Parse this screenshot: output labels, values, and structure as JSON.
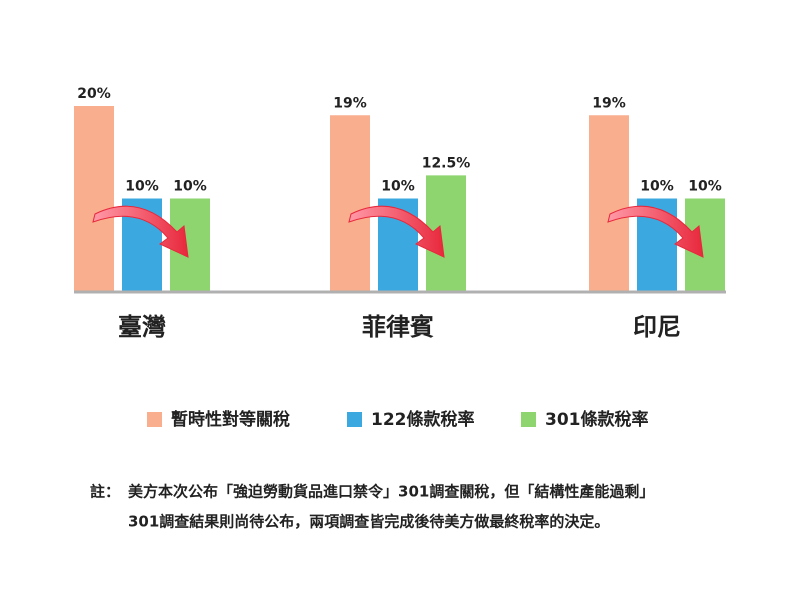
{
  "chart_data": {
    "type": "bar",
    "categories": [
      "臺灣",
      "菲律賓",
      "印尼"
    ],
    "series": [
      {
        "name": "暫時性對等關稅",
        "color": "#f9ae8d",
        "values": [
          20,
          19,
          19
        ],
        "value_labels": [
          "20%",
          "19%",
          "19%"
        ]
      },
      {
        "name": "122條款稅率",
        "color": "#3ba9e0",
        "values": [
          10,
          10,
          10
        ],
        "value_labels": [
          "10%",
          "10%",
          "10%"
        ]
      },
      {
        "name": "301條款稅率",
        "color": "#8ed56f",
        "values": [
          10,
          12.5,
          10
        ],
        "value_labels": [
          "10%",
          "12.5%",
          "10%"
        ]
      }
    ],
    "note": {
      "label": "註：",
      "lines": [
        "美方本次公布「強迫勞動貨品進口禁令」301調查關稅，但「結構性產能過剩」",
        "301調查結果則尚待公布，兩項調查皆完成後待美方做最終稅率的決定。"
      ]
    }
  }
}
